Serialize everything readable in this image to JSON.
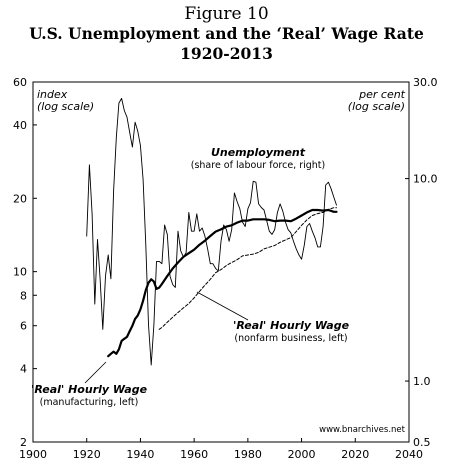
{
  "figure_label": "Figure 10",
  "title_line1": "U.S. Unemployment and the ‘Real’ Wage Rate",
  "title_line2": "1920-2013",
  "left_axis_note": [
    "index",
    "(log scale)"
  ],
  "right_axis_note": [
    "per cent",
    "(log scale)"
  ],
  "source": "www.bnarchives.net",
  "chart_data": {
    "type": "line",
    "x_range": [
      1900,
      2040
    ],
    "x_ticks": [
      1900,
      1920,
      1940,
      1960,
      1980,
      2000,
      2020,
      2040
    ],
    "left_axis": {
      "scale": "log",
      "range": [
        2,
        60
      ],
      "ticks": [
        2,
        4,
        6,
        8,
        10,
        20,
        40,
        60
      ],
      "tick_labels": [
        "2",
        "4",
        "6",
        "8",
        "10",
        "20",
        "40",
        "60"
      ]
    },
    "right_axis": {
      "scale": "log",
      "range": [
        0.5,
        30
      ],
      "ticks": [
        0.5,
        1,
        10,
        30
      ],
      "tick_labels": [
        "0.5",
        "1.0",
        "10.0",
        "30.0"
      ]
    },
    "annotations": [
      {
        "bold": "Unemployment",
        "sub": "(share of labour force, right)"
      },
      {
        "bold": "'Real' Hourly Wage",
        "sub": "(nonfarm business, left)"
      },
      {
        "bold": "'Real' Hourly Wage",
        "sub": "(manufacturing, left)"
      }
    ],
    "series": [
      {
        "axis": "right",
        "style": "thin",
        "x": [
          1920,
          1921,
          1922,
          1923,
          1924,
          1925,
          1926,
          1927,
          1928,
          1929,
          1930,
          1931,
          1932,
          1933,
          1934,
          1935,
          1936,
          1937,
          1938,
          1939,
          1940,
          1941,
          1942,
          1943,
          1944,
          1945,
          1946,
          1947,
          1948,
          1949,
          1950,
          1951,
          1952,
          1953,
          1954,
          1955,
          1956,
          1957,
          1958,
          1959,
          1960,
          1961,
          1962,
          1963,
          1964,
          1965,
          1966,
          1967,
          1968,
          1969,
          1970,
          1971,
          1972,
          1973,
          1974,
          1975,
          1976,
          1977,
          1978,
          1979,
          1980,
          1981,
          1982,
          1983,
          1984,
          1985,
          1986,
          1987,
          1988,
          1989,
          1990,
          1991,
          1992,
          1993,
          1994,
          1995,
          1996,
          1997,
          1998,
          1999,
          2000,
          2001,
          2002,
          2003,
          2004,
          2005,
          2006,
          2007,
          2008,
          2009,
          2010,
          2011,
          2012,
          2013
        ],
        "values": [
          5.2,
          11.7,
          6.7,
          2.4,
          5.0,
          3.2,
          1.8,
          3.3,
          4.2,
          3.2,
          8.7,
          15.9,
          23.6,
          24.9,
          21.7,
          20.1,
          16.9,
          14.3,
          19.0,
          17.2,
          14.6,
          9.9,
          4.7,
          1.9,
          1.2,
          1.9,
          3.9,
          3.9,
          3.8,
          5.9,
          5.3,
          3.3,
          3.0,
          2.9,
          5.5,
          4.4,
          4.1,
          4.3,
          6.8,
          5.5,
          5.5,
          6.7,
          5.5,
          5.7,
          5.2,
          4.5,
          3.8,
          3.8,
          3.6,
          3.5,
          4.9,
          5.9,
          5.6,
          4.9,
          5.6,
          8.5,
          7.7,
          7.1,
          6.1,
          5.8,
          7.1,
          7.6,
          9.7,
          9.6,
          7.5,
          7.2,
          7.0,
          6.2,
          5.5,
          5.3,
          5.6,
          6.8,
          7.5,
          6.9,
          6.1,
          5.6,
          5.4,
          4.9,
          4.5,
          4.2,
          4.0,
          4.7,
          5.8,
          6.0,
          5.5,
          5.1,
          4.6,
          4.6,
          5.8,
          9.3,
          9.6,
          8.9,
          8.1,
          7.4
        ]
      },
      {
        "axis": "left",
        "style": "thick",
        "x": [
          1928,
          1929,
          1930,
          1931,
          1932,
          1933,
          1934,
          1935,
          1936,
          1937,
          1938,
          1939,
          1940,
          1941,
          1942,
          1943,
          1944,
          1945,
          1946,
          1947,
          1948,
          1950,
          1952,
          1954,
          1956,
          1958,
          1960,
          1962,
          1964,
          1966,
          1968,
          1970,
          1972,
          1974,
          1976,
          1978,
          1980,
          1982,
          1984,
          1986,
          1988,
          1990,
          1992,
          1994,
          1996,
          1998,
          2000,
          2002,
          2004,
          2006,
          2008,
          2010,
          2012,
          2013
        ],
        "values": [
          4.5,
          4.6,
          4.7,
          4.6,
          4.8,
          5.2,
          5.3,
          5.4,
          5.7,
          6.0,
          6.4,
          6.6,
          7.0,
          7.6,
          8.4,
          9.0,
          9.3,
          9.1,
          8.5,
          8.6,
          8.9,
          9.6,
          10.3,
          10.9,
          11.5,
          11.9,
          12.3,
          12.9,
          13.4,
          14.0,
          14.6,
          14.9,
          15.3,
          15.5,
          15.9,
          16.2,
          16.2,
          16.4,
          16.4,
          16.4,
          16.3,
          16.1,
          16.2,
          16.2,
          16.1,
          16.5,
          17.0,
          17.5,
          17.9,
          17.9,
          17.8,
          17.9,
          17.6,
          17.6
        ]
      },
      {
        "axis": "left",
        "style": "dashed",
        "x": [
          1947,
          1948,
          1950,
          1952,
          1954,
          1956,
          1958,
          1960,
          1962,
          1964,
          1966,
          1968,
          1970,
          1972,
          1974,
          1976,
          1978,
          1980,
          1982,
          1984,
          1986,
          1988,
          1990,
          1992,
          1994,
          1996,
          1998,
          2000,
          2002,
          2004,
          2006,
          2008,
          2010,
          2012,
          2013
        ],
        "values": [
          5.8,
          5.9,
          6.2,
          6.5,
          6.8,
          7.1,
          7.4,
          7.8,
          8.3,
          8.8,
          9.3,
          9.9,
          10.2,
          10.6,
          10.9,
          11.2,
          11.6,
          11.7,
          11.8,
          12.0,
          12.4,
          12.6,
          12.8,
          13.2,
          13.5,
          13.8,
          14.6,
          15.5,
          16.3,
          17.0,
          17.3,
          17.5,
          18.0,
          18.3,
          18.3
        ]
      }
    ]
  }
}
